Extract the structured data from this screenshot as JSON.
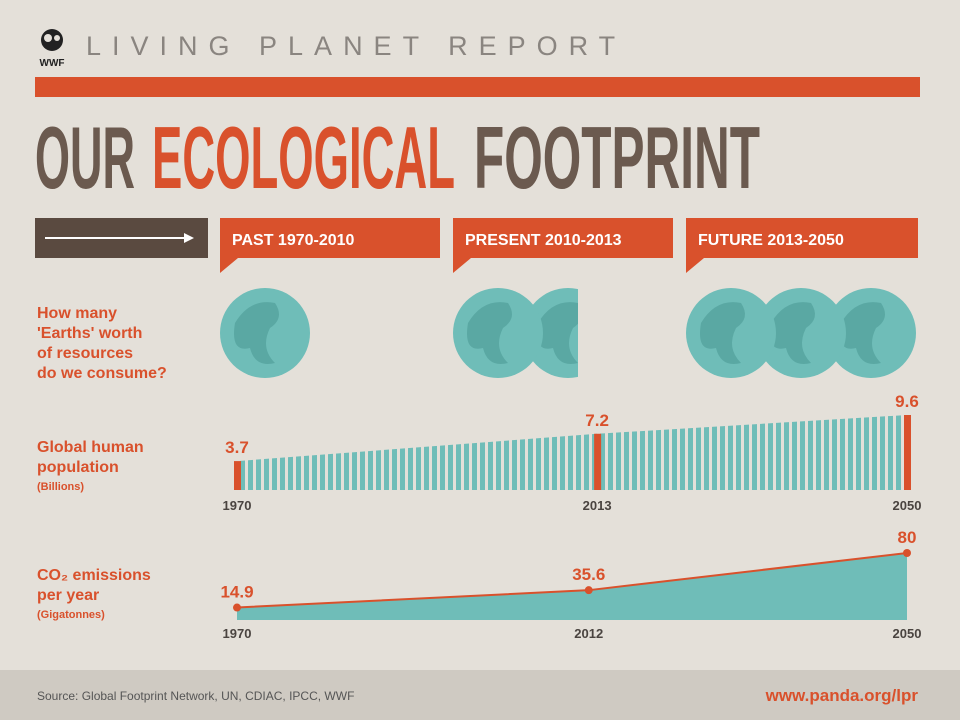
{
  "header": {
    "logo": "WWF",
    "report": "LIVING PLANET REPORT",
    "title_part1": "OUR",
    "title_part2": "ECOLOGICAL",
    "title_part3": "FOOTPRINT"
  },
  "chart_data": [
    {
      "type": "pictogram",
      "title": [
        "How many",
        "'Earths' worth",
        "of resources",
        "do we consume?"
      ],
      "categories": [
        "PAST 1970-2010",
        "PRESENT 2010-2013",
        "FUTURE 2013-2050"
      ],
      "values": [
        1,
        1.5,
        3
      ],
      "color": "#5aa8a3"
    },
    {
      "type": "bar",
      "title": [
        "Global human",
        "population"
      ],
      "unit": "(Billions)",
      "x": [
        1970,
        2013,
        2050
      ],
      "xlim": [
        1970,
        2050
      ],
      "values": [
        3.7,
        7.2,
        9.6
      ],
      "color": "#6fbdb8",
      "marker_color": "#d9512c"
    },
    {
      "type": "area",
      "title": [
        "CO₂ emissions",
        "per year"
      ],
      "unit": "(Gigatonnes)",
      "x": [
        1970,
        2012,
        2050
      ],
      "xlim": [
        1970,
        2050
      ],
      "values": [
        14.9,
        35.6,
        80
      ],
      "color": "#6fbdb8",
      "line_color": "#d9512c"
    }
  ],
  "footer": {
    "source": "Source: Global Footprint Network, UN, CDIAC, IPCC, WWF",
    "url": "www.panda.org/lpr"
  }
}
